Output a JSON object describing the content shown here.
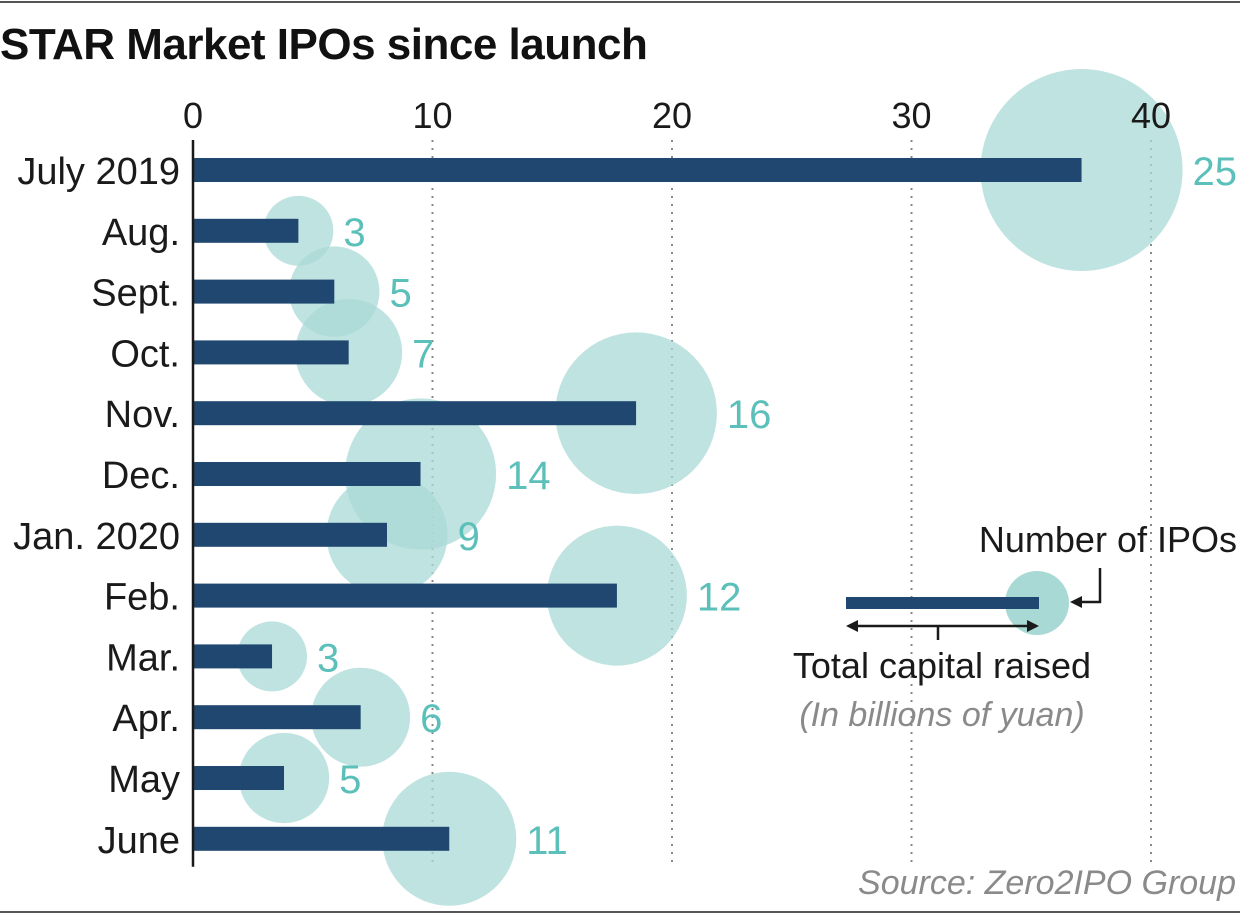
{
  "title": "STAR Market IPOs since launch",
  "source": "Source: Zero2IPO Group",
  "colors": {
    "bar": "#1f4770",
    "bubble": "#a9d9d5",
    "count": "#5bbfba",
    "grid": "#888888"
  },
  "legend": {
    "count_label": "Number of IPOs",
    "bar_label": "Total capital raised",
    "unit_label": "(In billions of yuan)"
  },
  "chart_data": {
    "type": "bar",
    "orientation": "horizontal",
    "title": "STAR Market IPOs since launch",
    "xlim": [
      0,
      42
    ],
    "xticks": [
      0,
      10,
      20,
      30,
      40
    ],
    "grid": "vertical dotted",
    "categories": [
      "July 2019",
      "Aug.",
      "Sept.",
      "Oct.",
      "Nov.",
      "Dec.",
      "Jan. 2020",
      "Feb.",
      "Mar.",
      "Apr.",
      "May",
      "June"
    ],
    "series": [
      {
        "name": "Total capital raised",
        "values": [
          37.1,
          4.4,
          5.9,
          6.5,
          18.5,
          9.5,
          8.1,
          17.7,
          3.3,
          7.0,
          3.8,
          10.7
        ]
      },
      {
        "name": "Number of IPOs",
        "values": [
          25,
          3,
          5,
          7,
          16,
          14,
          9,
          12,
          3,
          6,
          5,
          11
        ]
      }
    ]
  }
}
